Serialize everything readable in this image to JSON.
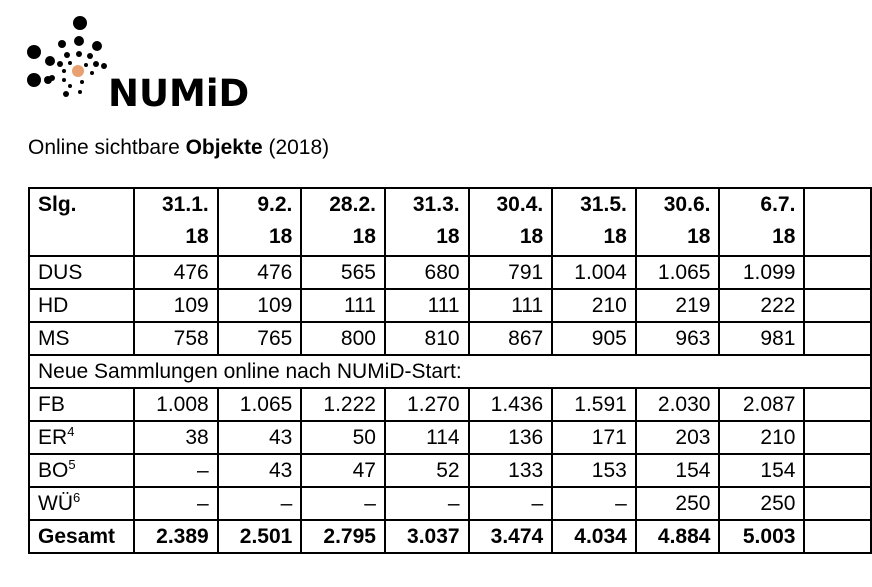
{
  "logo": {
    "text": "NUMiD",
    "accent_color": "#e8a070"
  },
  "caption": {
    "prefix": "Online sichtbare ",
    "bold": "Objekte",
    "suffix": " (2018)"
  },
  "table": {
    "header_label": "Slg.",
    "dates": [
      [
        "31.1.",
        "18"
      ],
      [
        "9.2.",
        "18"
      ],
      [
        "28.2.",
        "18"
      ],
      [
        "31.3.",
        "18"
      ],
      [
        "30.4.",
        "18"
      ],
      [
        "31.5.",
        "18"
      ],
      [
        "30.6.",
        "18"
      ],
      [
        "6.7.",
        "18"
      ]
    ],
    "rows_top": [
      {
        "label": "DUS",
        "sup": "",
        "values": [
          "476",
          "476",
          "565",
          "680",
          "791",
          "1.004",
          "1.065",
          "1.099"
        ]
      },
      {
        "label": "HD",
        "sup": "",
        "values": [
          "109",
          "109",
          "111",
          "111",
          "111",
          "210",
          "219",
          "222"
        ]
      },
      {
        "label": "MS",
        "sup": "",
        "values": [
          "758",
          "765",
          "800",
          "810",
          "867",
          "905",
          "963",
          "981"
        ]
      }
    ],
    "section_label": "Neue Sammlungen online nach NUMiD-Start:",
    "rows_new": [
      {
        "label": "FB",
        "sup": "",
        "values": [
          "1.008",
          "1.065",
          "1.222",
          "1.270",
          "1.436",
          "1.591",
          "2.030",
          "2.087"
        ]
      },
      {
        "label": "ER",
        "sup": "4",
        "values": [
          "38",
          "43",
          "50",
          "114",
          "136",
          "171",
          "203",
          "210"
        ]
      },
      {
        "label": "BO",
        "sup": "5",
        "values": [
          "–",
          "43",
          "47",
          "52",
          "133",
          "153",
          "154",
          "154"
        ]
      },
      {
        "label": "WÜ",
        "sup": "6",
        "values": [
          "–",
          "–",
          "–",
          "–",
          "–",
          "–",
          "250",
          "250"
        ]
      }
    ],
    "total": {
      "label": "Gesamt",
      "values": [
        "2.389",
        "2.501",
        "2.795",
        "3.037",
        "3.474",
        "4.034",
        "4.884",
        "5.003"
      ]
    }
  }
}
